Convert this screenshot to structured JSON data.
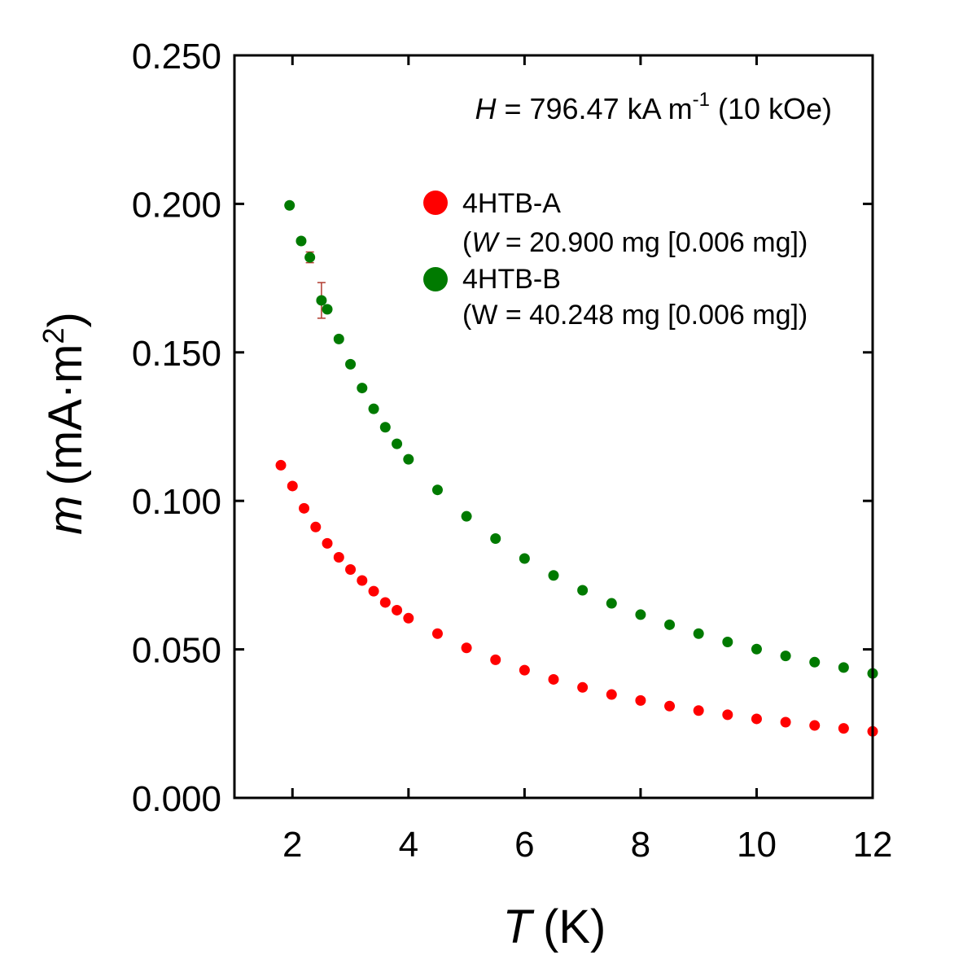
{
  "chart_data": {
    "type": "scatter",
    "xlabel_symbol": "T",
    "xlabel_unit": "(K)",
    "ylabel_symbol": "m",
    "ylabel_unit_pre": "(mA·m",
    "ylabel_unit_sup": "2",
    "ylabel_unit_post": ")",
    "xlim": [
      1,
      12
    ],
    "ylim": [
      0,
      0.25
    ],
    "xticks": [
      2,
      4,
      6,
      8,
      10,
      12
    ],
    "yticks": [
      0.0,
      0.05,
      0.1,
      0.15,
      0.2,
      0.25
    ],
    "ytick_labels": [
      "0.000",
      "0.050",
      "0.100",
      "0.150",
      "0.200",
      "0.250"
    ],
    "xtick_labels": [
      "2",
      "4",
      "6",
      "8",
      "10",
      "12"
    ],
    "grid": false,
    "legend_placement": "top-right",
    "annotation": {
      "symbol": "H",
      "text_main": " = 796.47 kA m",
      "sup": "-1",
      "text_end": " (10 kOe)"
    },
    "series": [
      {
        "name": "4HTB-A",
        "legend_line2_pre": "(",
        "legend_line2_italic": "W",
        "legend_line2_post": " = 20.900 mg [0.006 mg])",
        "color": "#ff0000",
        "x": [
          1.8,
          2.0,
          2.2,
          2.4,
          2.6,
          2.8,
          3.0,
          3.2,
          3.4,
          3.6,
          3.8,
          4.0,
          4.5,
          5.0,
          5.5,
          6.0,
          6.5,
          7.0,
          7.5,
          8.0,
          8.5,
          9.0,
          9.5,
          10.0,
          10.5,
          11.0,
          11.5,
          12.0
        ],
        "y": [
          0.112,
          0.105,
          0.0975,
          0.0912,
          0.0857,
          0.081,
          0.0769,
          0.0732,
          0.0696,
          0.0658,
          0.0632,
          0.0605,
          0.0553,
          0.0505,
          0.0465,
          0.043,
          0.0399,
          0.0372,
          0.0348,
          0.0328,
          0.0309,
          0.0294,
          0.028,
          0.0266,
          0.0255,
          0.0244,
          0.0234,
          0.0224
        ]
      },
      {
        "name": "4HTB-B",
        "legend_line2": "(W = 40.248 mg [0.006 mg])",
        "color": "#007a00",
        "x": [
          1.95,
          2.15,
          2.3,
          2.5,
          2.6,
          2.8,
          3.0,
          3.2,
          3.4,
          3.6,
          3.8,
          4.0,
          4.5,
          5.0,
          5.5,
          6.0,
          6.5,
          7.0,
          7.5,
          8.0,
          8.5,
          9.0,
          9.5,
          10.0,
          10.5,
          11.0,
          11.5,
          12.0
        ],
        "y": [
          0.1995,
          0.1875,
          0.182,
          0.1675,
          0.1645,
          0.1545,
          0.146,
          0.138,
          0.131,
          0.1248,
          0.1192,
          0.114,
          0.1037,
          0.0948,
          0.0873,
          0.0806,
          0.0749,
          0.0699,
          0.0655,
          0.0617,
          0.0583,
          0.0553,
          0.0525,
          0.0501,
          0.0478,
          0.0457,
          0.0439,
          0.0419
        ],
        "error_points": [
          {
            "x": 2.3,
            "y": 0.182,
            "err": 0.0018
          },
          {
            "x": 2.5,
            "y": 0.1675,
            "err": 0.006
          }
        ]
      }
    ]
  }
}
